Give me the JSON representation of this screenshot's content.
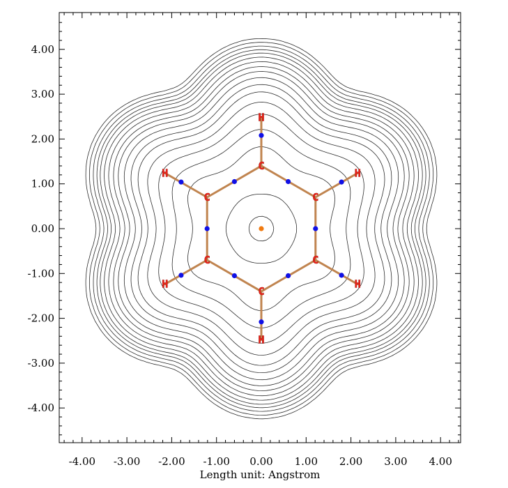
{
  "chart_data": {
    "type": "contour",
    "xlabel": "Length unit: Angstrom",
    "xlim": [
      -4.45,
      4.45
    ],
    "ylim": [
      -4.7,
      4.8
    ],
    "x_ticks": [
      "-4.00",
      "-3.00",
      "-2.00",
      "-1.00",
      "0.00",
      "1.00",
      "2.00",
      "3.00",
      "4.00"
    ],
    "y_ticks": [
      "4.00",
      "3.00",
      "2.00",
      "1.00",
      "0.00",
      "-1.00",
      "-2.00",
      "-3.00",
      "-4.00"
    ],
    "atoms": [
      {
        "element": "C",
        "label": "C",
        "x": 0.0,
        "y": 1.4
      },
      {
        "element": "C",
        "label": "C",
        "x": 1.21,
        "y": 0.7
      },
      {
        "element": "C",
        "label": "C",
        "x": 1.21,
        "y": -0.7
      },
      {
        "element": "C",
        "label": "C",
        "x": 0.0,
        "y": -1.4
      },
      {
        "element": "C",
        "label": "C",
        "x": -1.21,
        "y": -0.7
      },
      {
        "element": "C",
        "label": "C",
        "x": -1.21,
        "y": 0.7
      },
      {
        "element": "H",
        "label": "H",
        "x": 0.0,
        "y": 2.48
      },
      {
        "element": "H",
        "label": "H",
        "x": 2.15,
        "y": 1.24
      },
      {
        "element": "H",
        "label": "H",
        "x": 2.15,
        "y": -1.24
      },
      {
        "element": "H",
        "label": "H",
        "x": 0.0,
        "y": -2.48
      },
      {
        "element": "H",
        "label": "H",
        "x": -2.15,
        "y": -1.24
      },
      {
        "element": "H",
        "label": "H",
        "x": -2.15,
        "y": 1.24
      }
    ],
    "bond_critical_points": [
      {
        "x": 0.6,
        "y": 1.05
      },
      {
        "x": 1.21,
        "y": 0.0
      },
      {
        "x": 0.6,
        "y": -1.05
      },
      {
        "x": -0.6,
        "y": -1.05
      },
      {
        "x": -1.21,
        "y": 0.0
      },
      {
        "x": -0.6,
        "y": 1.05
      },
      {
        "x": 0.0,
        "y": 2.08
      },
      {
        "x": 1.79,
        "y": 1.04
      },
      {
        "x": 1.79,
        "y": -1.04
      },
      {
        "x": 0.0,
        "y": -2.08
      },
      {
        "x": -1.79,
        "y": -1.04
      },
      {
        "x": -1.79,
        "y": 1.04
      }
    ],
    "ring_critical_point": {
      "x": 0.0,
      "y": 0.0
    },
    "colors": {
      "contour": "#2a2a2a",
      "bond": "#c0844f",
      "bond_critical_point": "#1010e6",
      "ring_critical_point": "#f07a10",
      "atom_label": "#e8261b"
    }
  }
}
